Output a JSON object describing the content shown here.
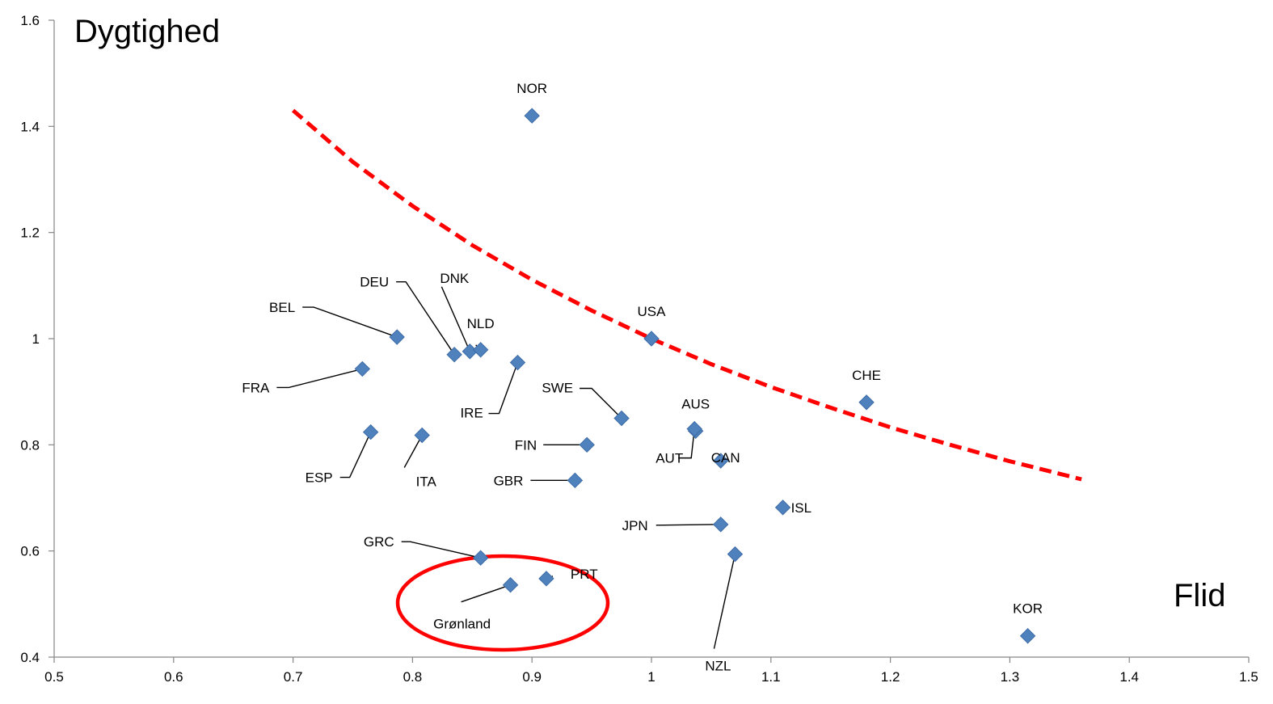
{
  "chart_data": {
    "type": "scatter",
    "title": "",
    "xlabel": "Flid",
    "ylabel": "Dygtighed",
    "xlim": [
      0.5,
      1.5
    ],
    "ylim": [
      0.4,
      1.6
    ],
    "x_ticks": [
      "0.5",
      "0.6",
      "0.7",
      "0.8",
      "0.9",
      "1",
      "1.1",
      "1.2",
      "1.3",
      "1.4",
      "1.5"
    ],
    "y_ticks": [
      "0.4",
      "0.6",
      "0.8",
      "1",
      "1.2",
      "1.4",
      "1.6"
    ],
    "grid": false,
    "marker_color": "#4f81bd",
    "curve_color": "#ff0000",
    "highlight_color": "#ff0000",
    "points": [
      {
        "label": "NOR",
        "x": 0.9,
        "y": 1.42
      },
      {
        "label": "USA",
        "x": 1.0,
        "y": 1.0
      },
      {
        "label": "CHE",
        "x": 1.18,
        "y": 0.88
      },
      {
        "label": "BEL",
        "x": 0.787,
        "y": 1.003
      },
      {
        "label": "DEU",
        "x": 0.835,
        "y": 0.97
      },
      {
        "label": "DNK",
        "x": 0.848,
        "y": 0.976
      },
      {
        "label": "NLD",
        "x": 0.857,
        "y": 0.979
      },
      {
        "label": "IRE",
        "x": 0.888,
        "y": 0.955
      },
      {
        "label": "FRA",
        "x": 0.758,
        "y": 0.943
      },
      {
        "label": "SWE",
        "x": 0.975,
        "y": 0.85
      },
      {
        "label": "AUS",
        "x": 1.037,
        "y": 0.826
      },
      {
        "label": "ESP",
        "x": 0.765,
        "y": 0.824
      },
      {
        "label": "ITA",
        "x": 0.808,
        "y": 0.818
      },
      {
        "label": "FIN",
        "x": 0.946,
        "y": 0.8
      },
      {
        "label": "AUT",
        "x": 1.036,
        "y": 0.83
      },
      {
        "label": "CAN",
        "x": 1.058,
        "y": 0.77
      },
      {
        "label": "GBR",
        "x": 0.936,
        "y": 0.733
      },
      {
        "label": "ISL",
        "x": 1.11,
        "y": 0.682
      },
      {
        "label": "JPN",
        "x": 1.058,
        "y": 0.65
      },
      {
        "label": "GRC",
        "x": 0.857,
        "y": 0.587
      },
      {
        "label": "NZL",
        "x": 1.07,
        "y": 0.594
      },
      {
        "label": "PRT",
        "x": 0.912,
        "y": 0.548
      },
      {
        "label": "Grønland",
        "x": 0.882,
        "y": 0.536
      },
      {
        "label": "KOR",
        "x": 1.315,
        "y": 0.44
      }
    ],
    "curve": {
      "style": "dashed",
      "x": [
        0.7,
        0.75,
        0.8,
        0.85,
        0.9,
        0.95,
        1.0,
        1.05,
        1.1,
        1.15,
        1.2,
        1.25,
        1.3,
        1.36
      ],
      "y": [
        1.43,
        1.333,
        1.25,
        1.176,
        1.111,
        1.053,
        1.0,
        0.952,
        0.909,
        0.87,
        0.833,
        0.8,
        0.769,
        0.735
      ]
    }
  }
}
